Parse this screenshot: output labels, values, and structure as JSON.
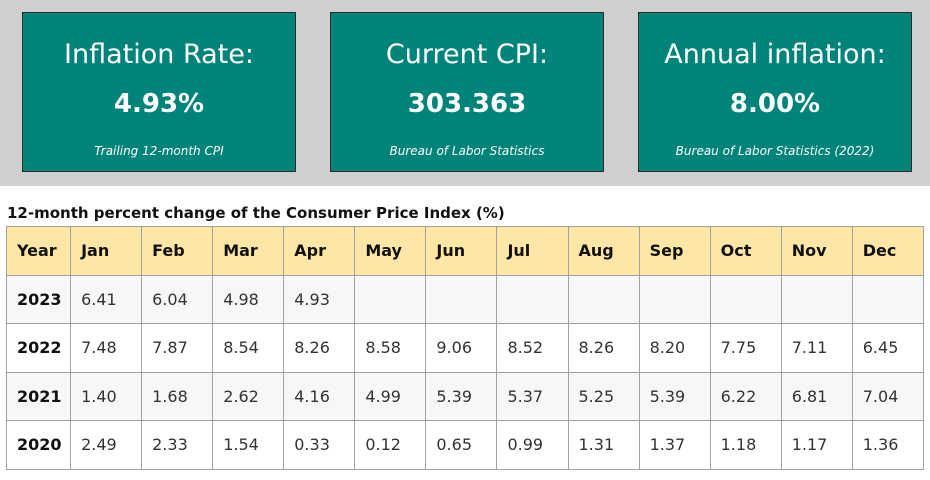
{
  "cards": [
    {
      "label": "Inflation Rate:",
      "value": "4.93%",
      "source": "Trailing 12-month CPI"
    },
    {
      "label": "Current CPI:",
      "value": "303.363",
      "source": "Bureau of Labor Statistics"
    },
    {
      "label": "Annual inflation:",
      "value": "8.00%",
      "source": "Bureau of Labor Statistics (2022)"
    }
  ],
  "colors": {
    "card_bg": "#00847a",
    "header_bg": "#fde6a6",
    "band_bg": "#cfcfcf"
  },
  "table": {
    "title": "12-month percent change of the Consumer Price Index (%)",
    "headers": [
      "Year",
      "Jan",
      "Feb",
      "Mar",
      "Apr",
      "May",
      "Jun",
      "Jul",
      "Aug",
      "Sep",
      "Oct",
      "Nov",
      "Dec"
    ],
    "rows": [
      [
        "2023",
        "6.41",
        "6.04",
        "4.98",
        "4.93",
        "",
        "",
        "",
        "",
        "",
        "",
        "",
        ""
      ],
      [
        "2022",
        "7.48",
        "7.87",
        "8.54",
        "8.26",
        "8.58",
        "9.06",
        "8.52",
        "8.26",
        "8.20",
        "7.75",
        "7.11",
        "6.45"
      ],
      [
        "2021",
        "1.40",
        "1.68",
        "2.62",
        "4.16",
        "4.99",
        "5.39",
        "5.37",
        "5.25",
        "5.39",
        "6.22",
        "6.81",
        "7.04"
      ],
      [
        "2020",
        "2.49",
        "2.33",
        "1.54",
        "0.33",
        "0.12",
        "0.65",
        "0.99",
        "1.31",
        "1.37",
        "1.18",
        "1.17",
        "1.36"
      ]
    ]
  }
}
